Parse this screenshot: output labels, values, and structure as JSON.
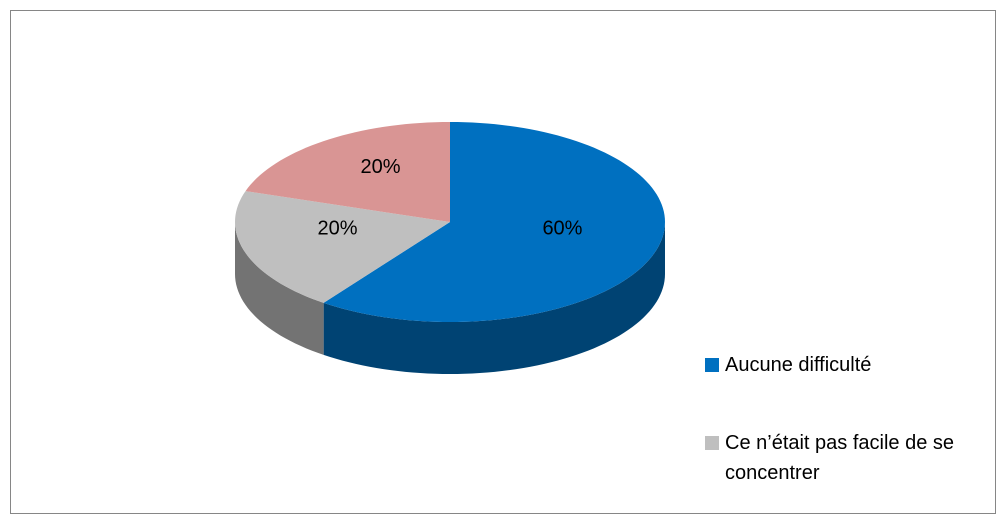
{
  "chart_data": {
    "type": "pie",
    "categories": [
      "Aucune difficulté",
      "Ce n’était pas facile de se concentrer",
      null
    ],
    "values": [
      60,
      20,
      20
    ],
    "value_labels": [
      "60%",
      "20%",
      "20%"
    ],
    "colors": [
      "#0070c0",
      "#bfbfbf",
      "#d99594"
    ]
  }
}
